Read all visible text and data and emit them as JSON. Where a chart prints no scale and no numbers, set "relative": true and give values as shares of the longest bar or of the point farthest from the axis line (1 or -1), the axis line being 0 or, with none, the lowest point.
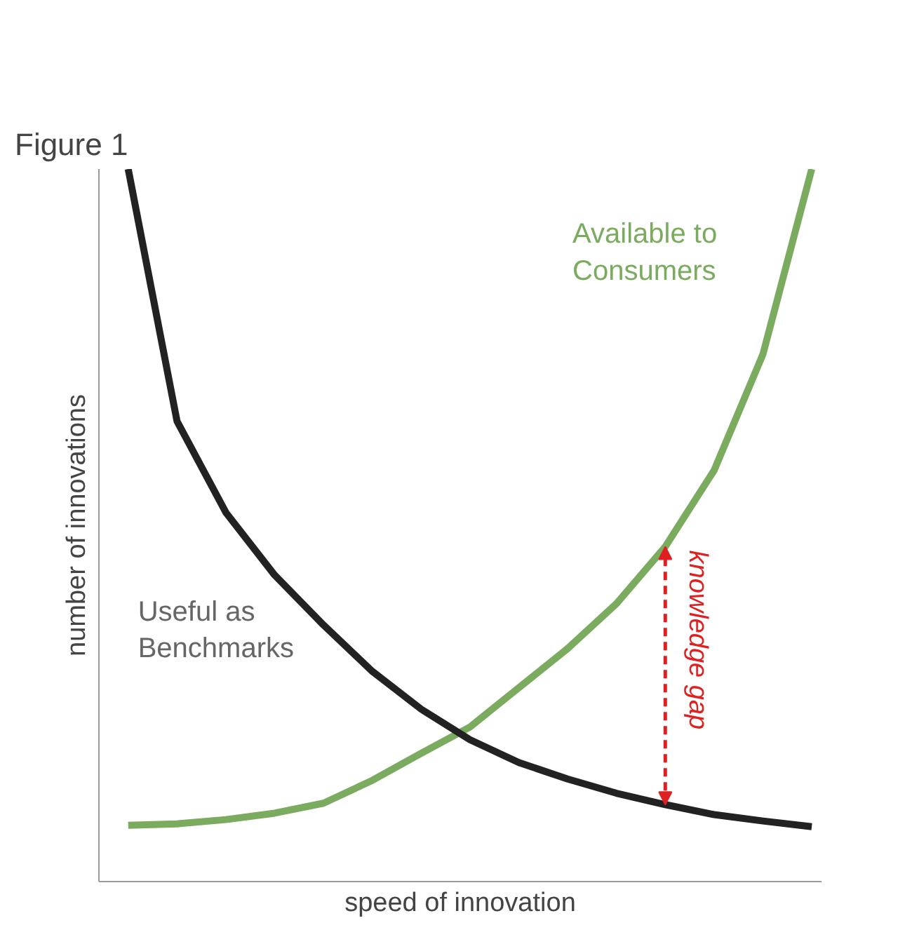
{
  "chart_data": {
    "type": "line",
    "relative": true,
    "title": "Figure 1",
    "xlabel": "speed of innovation",
    "ylabel": "number of innovations",
    "categories": [
      null,
      null,
      null,
      null,
      null,
      null,
      null,
      null,
      null,
      null,
      null,
      null,
      null,
      null,
      null
    ],
    "series": [
      {
        "name": "Available to Consumers",
        "color": "#7aab5f",
        "values": [
          0.079,
          0.081,
          0.087,
          0.096,
          0.11,
          0.142,
          0.18,
          0.217,
          0.272,
          0.327,
          0.39,
          0.47,
          0.577,
          0.74,
          1.0
        ]
      },
      {
        "name": "Useful as Benchmarks",
        "color": "#222222",
        "values": [
          1.0,
          0.646,
          0.518,
          0.43,
          0.36,
          0.295,
          0.242,
          0.199,
          0.167,
          0.144,
          0.124,
          0.108,
          0.094,
          0.085,
          0.077
        ]
      }
    ],
    "annotations": [
      "knowledge gap"
    ],
    "tick_labels": false,
    "marker": "none",
    "line_style": "solid"
  }
}
